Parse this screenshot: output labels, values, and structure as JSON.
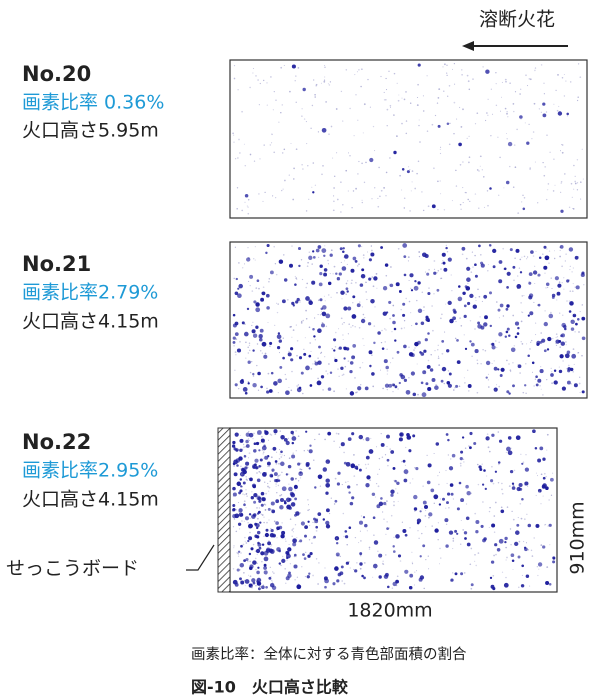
{
  "direction_label": "溶断火花",
  "panels": [
    {
      "id": "No.20",
      "ratio": "画素比率 0.36%",
      "height": "火口高さ5.95m"
    },
    {
      "id": "No.21",
      "ratio": "画素比率2.79%",
      "height": "火口高さ4.15m"
    },
    {
      "id": "No.22",
      "ratio": "画素比率2.95%",
      "height": "火口高さ4.15m"
    }
  ],
  "board_label": "せっこうボード",
  "height_dim": "910mm",
  "width_dim": "1820mm",
  "note": "画素比率：全体に対する青色部面積の割合",
  "caption": "図-10　火口高さ比較"
}
